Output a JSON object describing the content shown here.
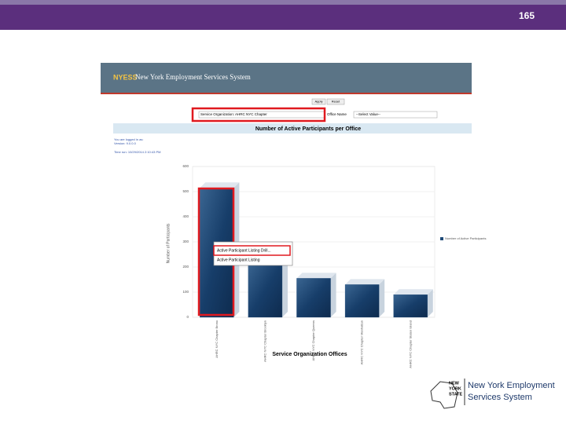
{
  "page_number": "165",
  "app": {
    "logo": "NYESS",
    "title": "New York Employment Services System"
  },
  "toolbar": {
    "apply": "Apply",
    "reset": "Reset"
  },
  "filters": {
    "organization": "Service Organization: AHRC NYC Chapter",
    "office_label": "Office Name",
    "office_value": "--Select Value--"
  },
  "session": [
    "You are logged in as: ",
    "Version: 9.0.0.0",
    "Time run: 10/29/2014 2:10:43 PM"
  ],
  "tooltip": [
    "Active Participant Listing Drill...",
    "Active Participant Listing"
  ],
  "footer": {
    "state": [
      "NEW",
      "YORK",
      "STATE"
    ],
    "name": [
      "New York Employment",
      "Services System"
    ]
  },
  "chart_data": {
    "type": "bar",
    "title": "Number of Active Participants per Office",
    "xlabel": "Service Organization Offices",
    "ylabel": "Number of Participants",
    "categories": [
      "AHRC NYC Chapter Bronx",
      "AHRC NYC Chapter Brooklyn",
      "AHRC NYC Chapter Queens",
      "AHRC NYC Chapter Manhattan",
      "AHRC NYC Chapter Staten Island"
    ],
    "series": [
      {
        "name": "Number of Active Participants",
        "color": "#1f4a78",
        "values": [
          515,
          220,
          155,
          130,
          90
        ]
      }
    ],
    "ylim": [
      0,
      600
    ],
    "yticks": [
      0,
      100,
      200,
      300,
      400,
      500,
      600
    ],
    "grid": true
  }
}
